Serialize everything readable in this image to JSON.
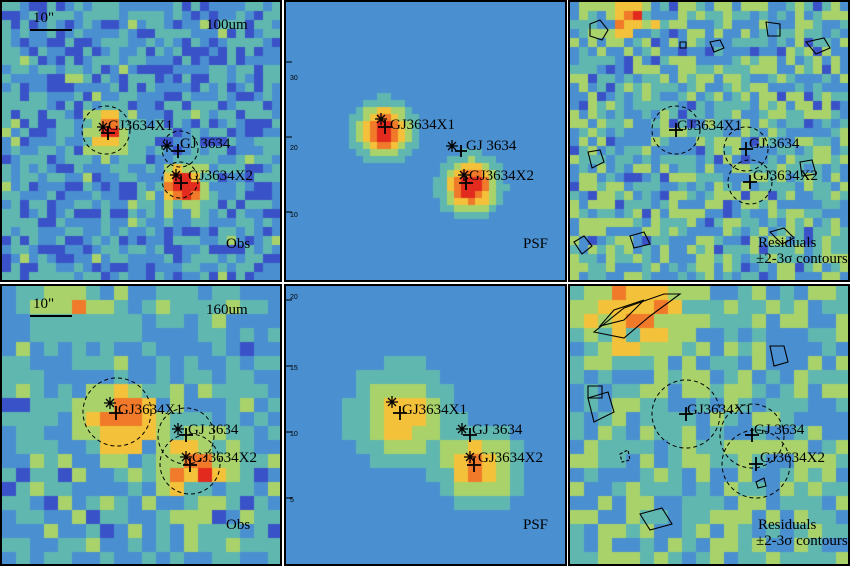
{
  "rows": [
    {
      "id": "100um",
      "wavelength_label": "100um",
      "scalebar_label": "10\"",
      "panels": [
        {
          "kind": "obs",
          "corner_label": "Obs"
        },
        {
          "kind": "psf",
          "corner_label": "PSF"
        },
        {
          "kind": "residuals",
          "corner_label_1": "Residuals",
          "corner_label_2": "±2-3σ contours"
        }
      ],
      "axis_ticks": [
        "20",
        "30",
        "20",
        "10"
      ]
    },
    {
      "id": "160um",
      "wavelength_label": "160um",
      "scalebar_label": "10\"",
      "panels": [
        {
          "kind": "obs",
          "corner_label": "Obs"
        },
        {
          "kind": "psf",
          "corner_label": "PSF"
        },
        {
          "kind": "residuals",
          "corner_label_1": "Residuals",
          "corner_label_2": "±2-3σ contours"
        }
      ],
      "axis_ticks": [
        "20",
        "15",
        "10",
        "5"
      ]
    }
  ],
  "sources": [
    {
      "name": "GJ3634X1",
      "label": "GJ3634X1"
    },
    {
      "name": "GJ 3634",
      "label": "GJ 3634"
    },
    {
      "name": "GJ3634X2",
      "label": "GJ3634X2"
    }
  ],
  "colormap": [
    "#5a1e7a",
    "#3a52c8",
    "#4a8fcf",
    "#5fb7b0",
    "#a9d36a",
    "#f3c13a",
    "#f07a2a",
    "#e22b1e"
  ]
}
